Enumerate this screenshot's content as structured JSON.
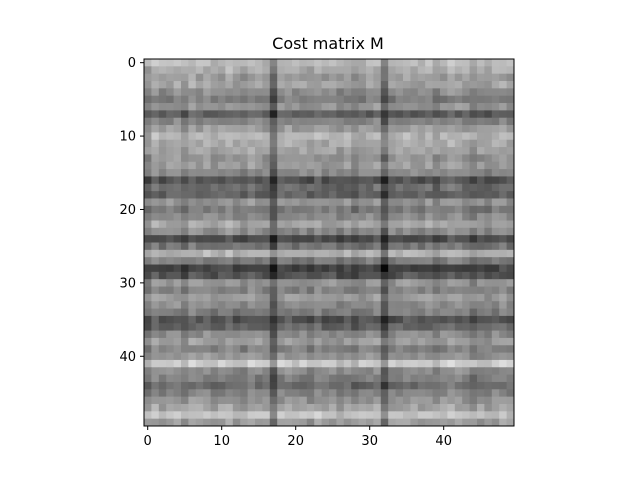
{
  "chart_data": {
    "type": "heatmap",
    "title": "Cost matrix M",
    "xlabel": "",
    "ylabel": "",
    "colormap": "gray",
    "grid": false,
    "rows": 50,
    "cols": 50,
    "xlim": [
      -0.5,
      49.5
    ],
    "ylim": [
      49.5,
      -0.5
    ],
    "x_ticks": [
      0,
      10,
      20,
      30,
      40
    ],
    "y_ticks": [
      0,
      10,
      20,
      30,
      40
    ],
    "x_tick_labels": [
      "0",
      "10",
      "20",
      "30",
      "40"
    ],
    "y_tick_labels": [
      "0",
      "10",
      "20",
      "30",
      "40"
    ],
    "row_values": [
      0.15,
      0.25,
      0.35,
      0.3,
      0.45,
      0.55,
      0.4,
      0.75,
      0.5,
      0.35,
      0.2,
      0.25,
      0.3,
      0.4,
      0.35,
      0.45,
      0.8,
      0.65,
      0.7,
      0.4,
      0.55,
      0.45,
      0.3,
      0.45,
      0.85,
      0.6,
      0.2,
      0.55,
      0.9,
      0.8,
      0.4,
      0.5,
      0.35,
      0.45,
      0.55,
      0.8,
      0.7,
      0.45,
      0.35,
      0.5,
      0.4,
      0.05,
      0.45,
      0.55,
      0.65,
      0.5,
      0.4,
      0.3,
      0.1,
      0.35
    ],
    "col_values": [
      0.6,
      0.35,
      0.5,
      0.45,
      0.4,
      0.55,
      0.35,
      0.45,
      0.4,
      0.5,
      0.45,
      0.35,
      0.5,
      0.55,
      0.4,
      0.45,
      0.5,
      0.95,
      0.45,
      0.4,
      0.5,
      0.45,
      0.55,
      0.4,
      0.5,
      0.45,
      0.55,
      0.45,
      0.6,
      0.5,
      0.45,
      0.4,
      0.95,
      0.5,
      0.45,
      0.4,
      0.45,
      0.5,
      0.4,
      0.55,
      0.45,
      0.35,
      0.4,
      0.45,
      0.6,
      0.5,
      0.55,
      0.45,
      0.4,
      0.5
    ]
  }
}
